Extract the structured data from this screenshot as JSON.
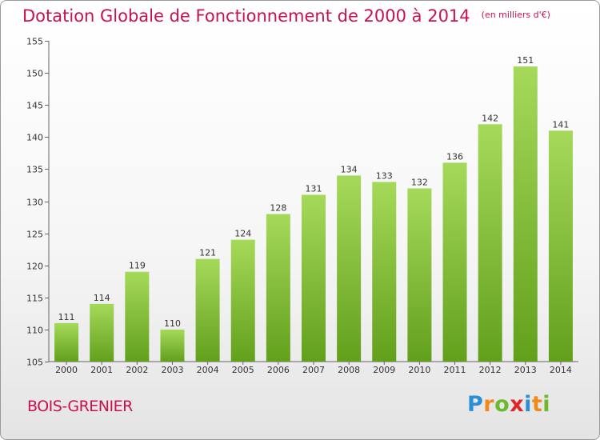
{
  "title": "Dotation Globale de Fonctionnement de 2000 à 2014",
  "unit_note": "(en milliers d'€)",
  "city": "BOIS-GRENIER",
  "logo": {
    "text": "Proxiti",
    "letters": [
      {
        "ch": "P",
        "color": "#2a8fd6"
      },
      {
        "ch": "r",
        "color": "#f08a1c"
      },
      {
        "ch": "o",
        "color": "#6cb82e"
      },
      {
        "ch": "x",
        "color": "#e0242a"
      },
      {
        "ch": "i",
        "color": "#2a8fd6"
      },
      {
        "ch": "t",
        "color": "#f08a1c"
      },
      {
        "ch": "i",
        "color": "#6cb82e"
      }
    ]
  },
  "colors": {
    "title": "#c8124f",
    "bar_light": "#a6d95a",
    "bar_dark": "#62a01c"
  },
  "chart_data": {
    "type": "bar",
    "title": "Dotation Globale de Fonctionnement de 2000 à 2014",
    "subtitle": "(en milliers d'€)",
    "xlabel": "",
    "ylabel": "",
    "categories": [
      "2000",
      "2001",
      "2002",
      "2003",
      "2004",
      "2005",
      "2006",
      "2007",
      "2008",
      "2009",
      "2010",
      "2011",
      "2012",
      "2013",
      "2014"
    ],
    "values": [
      111,
      114,
      119,
      110,
      121,
      124,
      128,
      131,
      134,
      133,
      132,
      136,
      142,
      151,
      141
    ],
    "ylim": [
      105,
      155
    ],
    "yticks": [
      105,
      110,
      115,
      120,
      125,
      130,
      135,
      140,
      145,
      150,
      155
    ],
    "grid": false,
    "legend": "none"
  }
}
